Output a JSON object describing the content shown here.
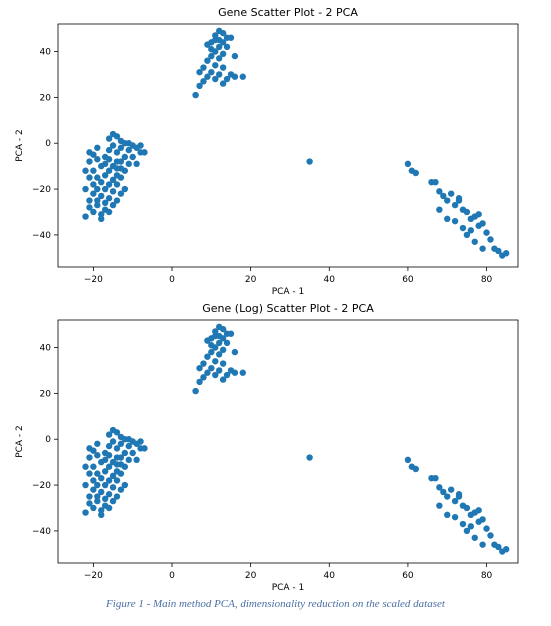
{
  "chart_data": [
    {
      "type": "scatter",
      "title": "Gene Scatter Plot - 2 PCA",
      "xlabel": "PCA - 1",
      "ylabel": "PCA - 2",
      "xlim": [
        -29,
        88
      ],
      "ylim": [
        -54,
        52
      ],
      "xticks": [
        -20,
        0,
        20,
        40,
        60,
        80
      ],
      "yticks": [
        -40,
        -20,
        0,
        20,
        40
      ],
      "color": "#1f77b4",
      "series": [
        {
          "points": [
            [
              -22,
              -12
            ],
            [
              -21,
              -8
            ],
            [
              -20,
              -5
            ],
            [
              -19,
              -2
            ],
            [
              -18,
              -10
            ],
            [
              -17,
              -6
            ],
            [
              -16,
              -3
            ],
            [
              -15,
              -1
            ],
            [
              -14,
              -4
            ],
            [
              -13,
              -2
            ],
            [
              -12,
              -6
            ],
            [
              -11,
              -3
            ],
            [
              -10,
              -1
            ],
            [
              -9,
              -2
            ],
            [
              -8,
              -4
            ],
            [
              -16,
              2
            ],
            [
              -15,
              4
            ],
            [
              -14,
              3
            ],
            [
              -13,
              1
            ],
            [
              -12,
              0
            ],
            [
              -17,
              -14
            ],
            [
              -16,
              -12
            ],
            [
              -15,
              -10
            ],
            [
              -14,
              -8
            ],
            [
              -13,
              -11
            ],
            [
              -18,
              -17
            ],
            [
              -17,
              -20
            ],
            [
              -16,
              -18
            ],
            [
              -15,
              -16
            ],
            [
              -14,
              -14
            ],
            [
              -20,
              -22
            ],
            [
              -19,
              -25
            ],
            [
              -18,
              -23
            ],
            [
              -17,
              -26
            ],
            [
              -16,
              -24
            ],
            [
              -21,
              -28
            ],
            [
              -20,
              -30
            ],
            [
              -19,
              -27
            ],
            [
              -18,
              -31
            ],
            [
              -17,
              -29
            ],
            [
              -22,
              -32
            ],
            [
              -21,
              -25
            ],
            [
              -20,
              -18
            ],
            [
              -19,
              -15
            ],
            [
              -13,
              -8
            ],
            [
              -12,
              -12
            ],
            [
              -11,
              -9
            ],
            [
              -14,
              -18
            ],
            [
              -13,
              -22
            ],
            [
              -12,
              -20
            ],
            [
              -15,
              -27
            ],
            [
              -14,
              -25
            ],
            [
              -16,
              -30
            ],
            [
              -18,
              -33
            ],
            [
              -19,
              -20
            ],
            [
              -22,
              -20
            ],
            [
              -21,
              -15
            ],
            [
              -20,
              -12
            ],
            [
              -10,
              -6
            ],
            [
              -9,
              -9
            ],
            [
              -8,
              -1
            ],
            [
              -7,
              -4
            ],
            [
              -11,
              0
            ],
            [
              -13,
              -15
            ],
            [
              -15,
              -21
            ],
            [
              -17,
              -9
            ],
            [
              -19,
              -7
            ],
            [
              -21,
              -4
            ],
            [
              -16,
              -7
            ],
            [
              -14,
              -11
            ],
            [
              6,
              21
            ],
            [
              7,
              25
            ],
            [
              8,
              27
            ],
            [
              9,
              29
            ],
            [
              10,
              31
            ],
            [
              11,
              28
            ],
            [
              12,
              30
            ],
            [
              13,
              26
            ],
            [
              8,
              33
            ],
            [
              9,
              36
            ],
            [
              10,
              38
            ],
            [
              11,
              40
            ],
            [
              12,
              42
            ],
            [
              13,
              44
            ],
            [
              14,
              46
            ],
            [
              10,
              44
            ],
            [
              11,
              47
            ],
            [
              12,
              49
            ],
            [
              13,
              48
            ],
            [
              9,
              43
            ],
            [
              10,
              41
            ],
            [
              11,
              45
            ],
            [
              12,
              45
            ],
            [
              13,
              39
            ],
            [
              14,
              42
            ],
            [
              15,
              46
            ],
            [
              16,
              38
            ],
            [
              15,
              30
            ],
            [
              14,
              28
            ],
            [
              16,
              29
            ],
            [
              18,
              29
            ],
            [
              7,
              31
            ],
            [
              12,
              37
            ],
            [
              11,
              34
            ],
            [
              13,
              33
            ],
            [
              35,
              -8
            ],
            [
              60,
              -9
            ],
            [
              61,
              -12
            ],
            [
              62,
              -13
            ],
            [
              66,
              -17
            ],
            [
              67,
              -17
            ],
            [
              68,
              -21
            ],
            [
              69,
              -23
            ],
            [
              70,
              -25
            ],
            [
              71,
              -22
            ],
            [
              72,
              -27
            ],
            [
              73,
              -25
            ],
            [
              74,
              -29
            ],
            [
              75,
              -30
            ],
            [
              76,
              -33
            ],
            [
              77,
              -32
            ],
            [
              78,
              -36
            ],
            [
              79,
              -35
            ],
            [
              80,
              -39
            ],
            [
              81,
              -42
            ],
            [
              82,
              -46
            ],
            [
              83,
              -47
            ],
            [
              84,
              -49
            ],
            [
              85,
              -48
            ],
            [
              72,
              -34
            ],
            [
              74,
              -37
            ],
            [
              76,
              -38
            ],
            [
              78,
              -31
            ],
            [
              73,
              -24
            ],
            [
              68,
              -29
            ],
            [
              70,
              -33
            ],
            [
              75,
              -40
            ],
            [
              77,
              -43
            ],
            [
              79,
              -46
            ]
          ]
        }
      ]
    },
    {
      "type": "scatter",
      "title": "Gene (Log) Scatter Plot - 2 PCA",
      "xlabel": "PCA - 1",
      "ylabel": "PCA - 2",
      "xlim": [
        -29,
        88
      ],
      "ylim": [
        -54,
        52
      ],
      "xticks": [
        -20,
        0,
        20,
        40,
        60,
        80
      ],
      "yticks": [
        -40,
        -20,
        0,
        20,
        40
      ],
      "color": "#1f77b4",
      "series": [
        {
          "points": [
            [
              -22,
              -12
            ],
            [
              -21,
              -8
            ],
            [
              -20,
              -5
            ],
            [
              -19,
              -2
            ],
            [
              -18,
              -10
            ],
            [
              -17,
              -6
            ],
            [
              -16,
              -3
            ],
            [
              -15,
              -1
            ],
            [
              -14,
              -4
            ],
            [
              -13,
              -2
            ],
            [
              -12,
              -6
            ],
            [
              -11,
              -3
            ],
            [
              -10,
              -1
            ],
            [
              -9,
              -2
            ],
            [
              -8,
              -4
            ],
            [
              -16,
              2
            ],
            [
              -15,
              4
            ],
            [
              -14,
              3
            ],
            [
              -13,
              1
            ],
            [
              -12,
              0
            ],
            [
              -17,
              -14
            ],
            [
              -16,
              -12
            ],
            [
              -15,
              -10
            ],
            [
              -14,
              -8
            ],
            [
              -13,
              -11
            ],
            [
              -18,
              -17
            ],
            [
              -17,
              -20
            ],
            [
              -16,
              -18
            ],
            [
              -15,
              -16
            ],
            [
              -14,
              -14
            ],
            [
              -20,
              -22
            ],
            [
              -19,
              -25
            ],
            [
              -18,
              -23
            ],
            [
              -17,
              -26
            ],
            [
              -16,
              -24
            ],
            [
              -21,
              -28
            ],
            [
              -20,
              -30
            ],
            [
              -19,
              -27
            ],
            [
              -18,
              -31
            ],
            [
              -17,
              -29
            ],
            [
              -22,
              -32
            ],
            [
              -21,
              -25
            ],
            [
              -20,
              -18
            ],
            [
              -19,
              -15
            ],
            [
              -13,
              -8
            ],
            [
              -12,
              -12
            ],
            [
              -11,
              -9
            ],
            [
              -14,
              -18
            ],
            [
              -13,
              -22
            ],
            [
              -12,
              -20
            ],
            [
              -15,
              -27
            ],
            [
              -14,
              -25
            ],
            [
              -16,
              -30
            ],
            [
              -18,
              -33
            ],
            [
              -19,
              -20
            ],
            [
              -22,
              -20
            ],
            [
              -21,
              -15
            ],
            [
              -20,
              -12
            ],
            [
              -10,
              -6
            ],
            [
              -9,
              -9
            ],
            [
              -8,
              -1
            ],
            [
              -7,
              -4
            ],
            [
              -11,
              0
            ],
            [
              -13,
              -15
            ],
            [
              -15,
              -21
            ],
            [
              -17,
              -9
            ],
            [
              -19,
              -7
            ],
            [
              -21,
              -4
            ],
            [
              -16,
              -7
            ],
            [
              -14,
              -11
            ],
            [
              6,
              21
            ],
            [
              7,
              25
            ],
            [
              8,
              27
            ],
            [
              9,
              29
            ],
            [
              10,
              31
            ],
            [
              11,
              28
            ],
            [
              12,
              30
            ],
            [
              13,
              26
            ],
            [
              8,
              33
            ],
            [
              9,
              36
            ],
            [
              10,
              38
            ],
            [
              11,
              40
            ],
            [
              12,
              42
            ],
            [
              13,
              44
            ],
            [
              14,
              46
            ],
            [
              10,
              44
            ],
            [
              11,
              47
            ],
            [
              12,
              49
            ],
            [
              13,
              48
            ],
            [
              9,
              43
            ],
            [
              10,
              41
            ],
            [
              11,
              45
            ],
            [
              12,
              45
            ],
            [
              13,
              39
            ],
            [
              14,
              42
            ],
            [
              15,
              46
            ],
            [
              16,
              38
            ],
            [
              15,
              30
            ],
            [
              14,
              28
            ],
            [
              16,
              29
            ],
            [
              18,
              29
            ],
            [
              7,
              31
            ],
            [
              12,
              37
            ],
            [
              11,
              34
            ],
            [
              13,
              33
            ],
            [
              35,
              -8
            ],
            [
              60,
              -9
            ],
            [
              61,
              -12
            ],
            [
              62,
              -13
            ],
            [
              66,
              -17
            ],
            [
              67,
              -17
            ],
            [
              68,
              -21
            ],
            [
              69,
              -23
            ],
            [
              70,
              -25
            ],
            [
              71,
              -22
            ],
            [
              72,
              -27
            ],
            [
              73,
              -25
            ],
            [
              74,
              -29
            ],
            [
              75,
              -30
            ],
            [
              76,
              -33
            ],
            [
              77,
              -32
            ],
            [
              78,
              -36
            ],
            [
              79,
              -35
            ],
            [
              80,
              -39
            ],
            [
              81,
              -42
            ],
            [
              82,
              -46
            ],
            [
              83,
              -47
            ],
            [
              84,
              -49
            ],
            [
              85,
              -48
            ],
            [
              72,
              -34
            ],
            [
              74,
              -37
            ],
            [
              76,
              -38
            ],
            [
              78,
              -31
            ],
            [
              73,
              -24
            ],
            [
              68,
              -29
            ],
            [
              70,
              -33
            ],
            [
              75,
              -40
            ],
            [
              77,
              -43
            ],
            [
              79,
              -46
            ]
          ]
        }
      ]
    }
  ],
  "caption": "Figure 1 - Main method PCA, dimensionality reduction on the scaled dataset"
}
